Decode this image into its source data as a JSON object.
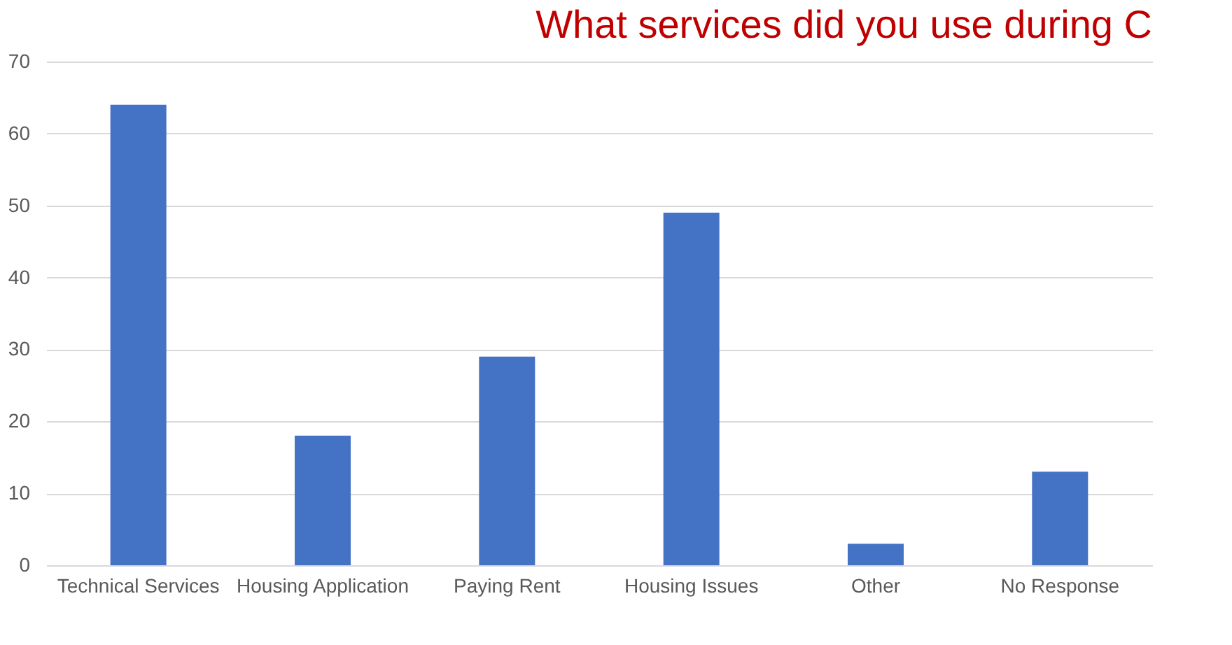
{
  "chart_data": {
    "type": "bar",
    "title": "What services did you use during C",
    "categories": [
      "Technical Services",
      "Housing Application",
      "Paying Rent",
      "Housing Issues",
      "Other",
      "No Response"
    ],
    "values": [
      64,
      18,
      29,
      49,
      3,
      13
    ],
    "color": "#4472c4",
    "ylim": [
      0,
      70
    ],
    "yticks": [
      0,
      10,
      20,
      30,
      40,
      50,
      60,
      70
    ],
    "grid": "y"
  }
}
